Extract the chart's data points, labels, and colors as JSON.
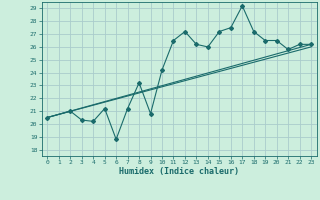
{
  "xlabel": "Humidex (Indice chaleur)",
  "background_color": "#cceedd",
  "grid_color": "#aacccc",
  "line_color": "#1a6b6b",
  "xlim": [
    -0.5,
    23.5
  ],
  "ylim": [
    17.5,
    29.5
  ],
  "yticks": [
    18,
    19,
    20,
    21,
    22,
    23,
    24,
    25,
    26,
    27,
    28,
    29
  ],
  "xticks": [
    0,
    1,
    2,
    3,
    4,
    5,
    6,
    7,
    8,
    9,
    10,
    11,
    12,
    13,
    14,
    15,
    16,
    17,
    18,
    19,
    20,
    21,
    22,
    23
  ],
  "data_line": [
    [
      0,
      20.5
    ],
    [
      2,
      21.0
    ],
    [
      3,
      20.3
    ],
    [
      4,
      20.2
    ],
    [
      5,
      21.2
    ],
    [
      6,
      18.8
    ],
    [
      7,
      21.2
    ],
    [
      8,
      23.2
    ],
    [
      9,
      20.8
    ],
    [
      10,
      24.2
    ],
    [
      11,
      26.5
    ],
    [
      12,
      27.2
    ],
    [
      13,
      26.2
    ],
    [
      14,
      26.0
    ],
    [
      15,
      27.2
    ],
    [
      16,
      27.5
    ],
    [
      17,
      29.2
    ],
    [
      18,
      27.2
    ],
    [
      19,
      26.5
    ],
    [
      20,
      26.5
    ],
    [
      21,
      25.8
    ],
    [
      22,
      26.2
    ],
    [
      23,
      26.2
    ]
  ],
  "trend_line1": [
    [
      0,
      20.5
    ],
    [
      23,
      26.2
    ]
  ],
  "trend_line2": [
    [
      0,
      20.5
    ],
    [
      23,
      26.0
    ]
  ]
}
